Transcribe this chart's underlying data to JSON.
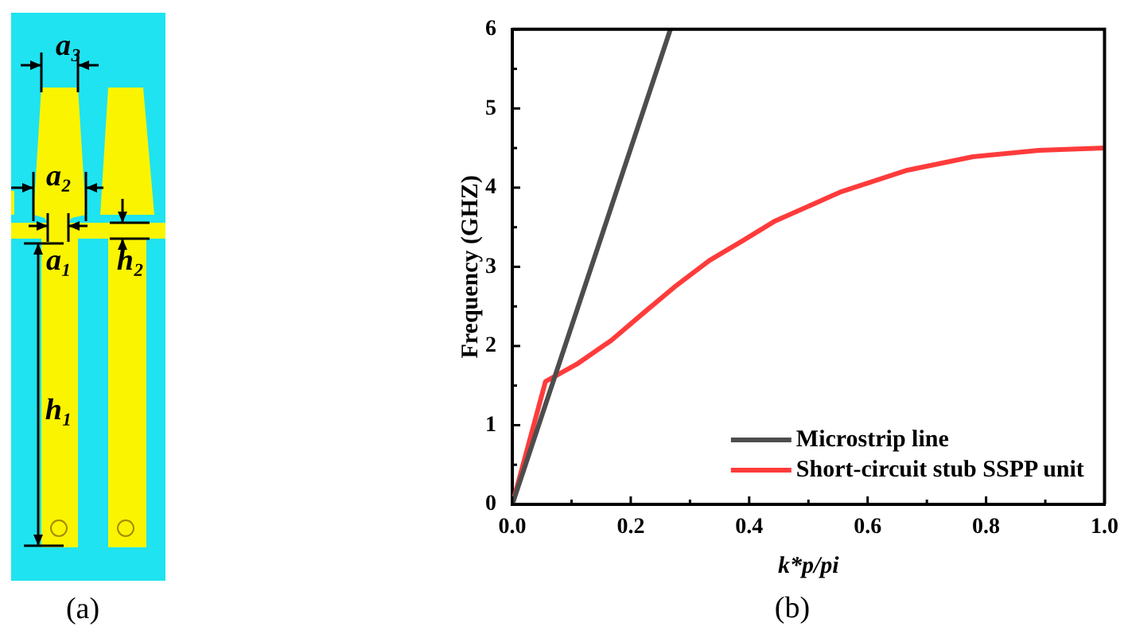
{
  "chart_data": [
    {
      "type": "other",
      "annotations": [
        "a₃",
        "a₂",
        "a₁",
        "h₂",
        "h₁",
        "(a)"
      ]
    },
    {
      "type": "line",
      "xlabel": "k*p/pi",
      "ylabel": "Frequency (GHZ)",
      "annotations": [
        "(b)"
      ],
      "xlim": [
        0,
        1
      ],
      "ylim": [
        0,
        6
      ],
      "xticks": [
        {
          "value": 0,
          "label": "0.0"
        },
        {
          "value": 0.1,
          "label": null
        },
        0.2,
        {
          "value": 0.3,
          "label": null
        },
        0.4,
        {
          "value": 0.5,
          "label": null
        },
        0.6,
        {
          "value": 0.7,
          "label": null
        },
        0.8,
        {
          "value": 0.9,
          "label": null
        },
        {
          "value": 1,
          "label": "1.0"
        }
      ],
      "yticks": [
        0,
        {
          "value": 0.5,
          "label": null
        },
        1,
        {
          "value": 1.5,
          "label": null
        },
        2,
        {
          "value": 2.5,
          "label": null
        },
        3,
        {
          "value": 3.5,
          "label": null
        },
        4,
        {
          "value": 4.5,
          "label": null
        },
        5,
        {
          "value": 5.5,
          "label": null
        },
        6
      ],
      "grid": false,
      "legend": "bottom right",
      "marker": "none",
      "line_style": "solid",
      "series": [
        {
          "name": "Microstrip line",
          "color": "#4d4d4d",
          "x": [
            0,
            0.267
          ],
          "values": [
            0,
            6
          ]
        },
        {
          "name": "Short-circuit stub SSPP unit",
          "color": "#ff3b3b",
          "x": [
            0,
            0.056,
            0.111,
            0.167,
            0.222,
            0.278,
            0.333,
            0.389,
            0.444,
            0.556,
            0.667,
            0.778,
            0.889,
            1
          ],
          "values": [
            0,
            1.55,
            1.78,
            2.07,
            2.42,
            2.77,
            3.08,
            3.33,
            3.58,
            3.95,
            4.22,
            4.39,
            4.47,
            4.5
          ]
        }
      ]
    }
  ]
}
